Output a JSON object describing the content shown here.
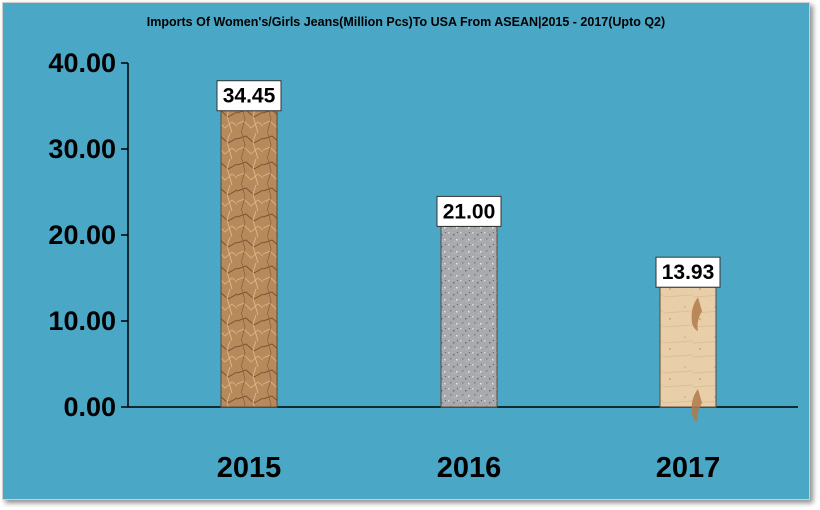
{
  "chart_data": {
    "type": "bar",
    "title": "Imports Of Women's/Girls Jeans(Million Pcs)To USA From ASEAN|2015 - 2017(Upto Q2)",
    "categories": [
      "2015",
      "2016",
      "2017"
    ],
    "values": [
      34.45,
      21.0,
      13.93
    ],
    "data_labels": [
      "34.45",
      "21.00",
      "13.93"
    ],
    "y_ticks": [
      "0.00",
      "10.00",
      "20.00",
      "30.00",
      "40.00"
    ],
    "ylim": [
      0,
      40
    ],
    "xlabel": "",
    "ylabel": "",
    "grid": false,
    "legend": "none"
  },
  "colors": {
    "background": "#4ba7c6",
    "bar_2015": "#b8895a",
    "bar_2016": "#a9aaae",
    "bar_2017": "#e8cfaa"
  }
}
